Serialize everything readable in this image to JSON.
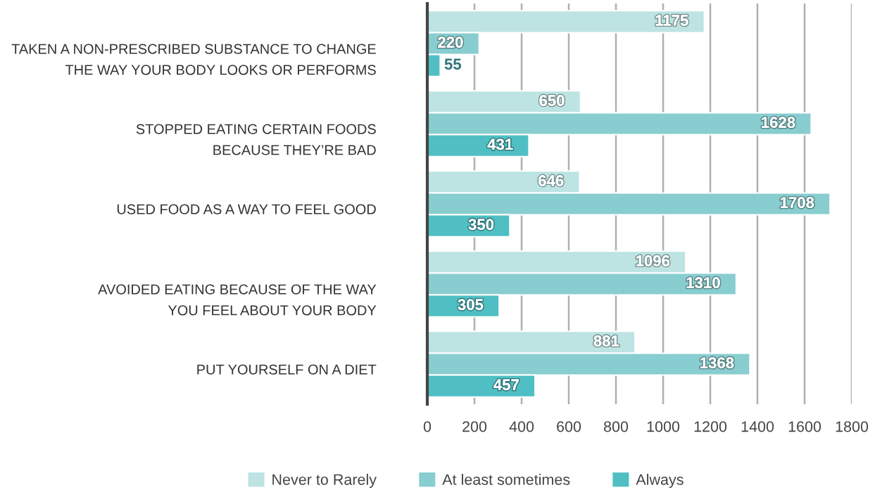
{
  "chart_data": {
    "type": "bar",
    "orientation": "horizontal",
    "categories": [
      "TAKEN A NON-PRESCRIBED SUBSTANCE TO CHANGE\nTHE WAY YOUR BODY LOOKS OR PERFORMS",
      "STOPPED EATING CERTAIN FOODS\nBECAUSE THEY’RE BAD",
      "USED FOOD AS A WAY TO FEEL GOOD",
      "AVOIDED EATING BECAUSE OF THE WAY\nYOU FEEL ABOUT YOUR BODY",
      "PUT YOURSELF ON A DIET"
    ],
    "series": [
      {
        "name": "Never to Rarely",
        "color": "#bde3e3",
        "values": [
          1175,
          650,
          646,
          1096,
          881
        ]
      },
      {
        "name": "At least sometimes",
        "color": "#88cdd0",
        "values": [
          220,
          1628,
          1708,
          1310,
          1368
        ]
      },
      {
        "name": "Always",
        "color": "#4fbfc3",
        "values": [
          55,
          431,
          350,
          305,
          457
        ]
      }
    ],
    "xlim": [
      0,
      1800
    ],
    "xticks": [
      0,
      200,
      400,
      600,
      800,
      1000,
      1200,
      1400,
      1600,
      1800
    ],
    "grid": "x",
    "legend": "bottom",
    "data_labels": true
  }
}
